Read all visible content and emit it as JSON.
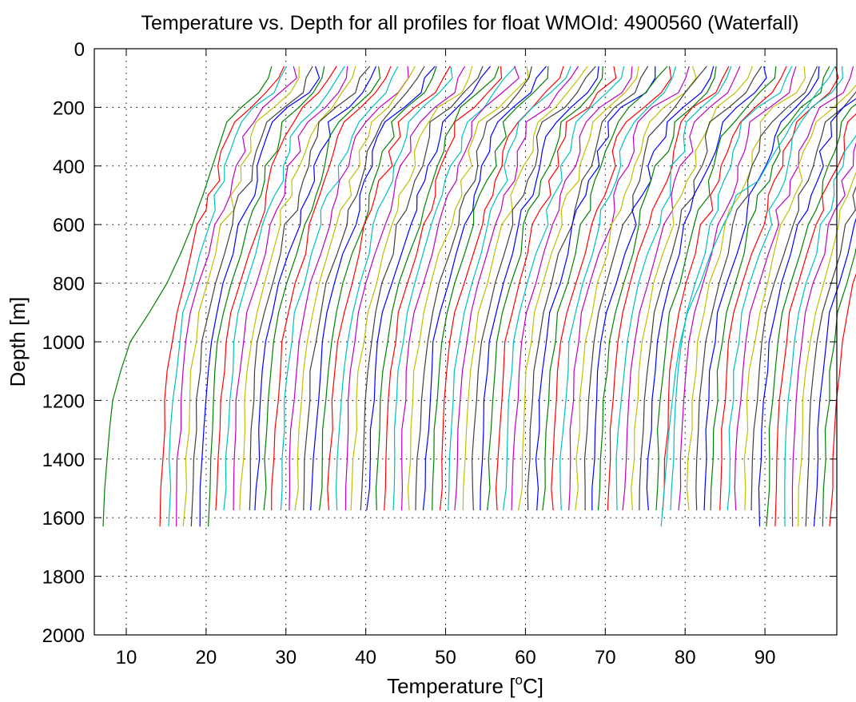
{
  "chart_data": {
    "type": "line",
    "title": "Temperature vs. Depth for all profiles for float WMOId: 4900560 (Waterfall)",
    "xlabel": "Temperature [",
    "xlabel_sup": "o",
    "xlabel_tail": "C]",
    "ylabel": "Depth [m]",
    "xlim": [
      6,
      99
    ],
    "ylim": [
      0,
      2000
    ],
    "y_reversed": true,
    "grid": true,
    "x_ticks": [
      10,
      20,
      30,
      40,
      50,
      60,
      70,
      80,
      90
    ],
    "y_ticks": [
      0,
      200,
      400,
      600,
      800,
      1000,
      1200,
      1400,
      1600,
      1800,
      2000
    ],
    "color_cycle": [
      "#008000",
      "#ff0000",
      "#00bfbf",
      "#bf00bf",
      "#bfbf00",
      "#404040",
      "#0000ff"
    ],
    "num_profiles": 87,
    "profile_offset_step_degC": 1.0,
    "profile_template": {
      "depth": [
        60,
        100,
        150,
        200,
        250,
        300,
        350,
        400,
        450,
        500,
        550,
        600,
        700,
        800,
        900,
        1000,
        1100,
        1200,
        1300,
        1400,
        1500,
        1575
      ],
      "temperature": [
        28.2,
        27.8,
        26.6,
        24.4,
        22.6,
        22.0,
        21.4,
        20.8,
        20.2,
        19.6,
        18.9,
        18.3,
        17.3,
        16.2,
        15.2,
        14.6,
        14.2,
        13.9,
        13.7,
        13.5,
        13.4,
        13.3
      ]
    },
    "first_profile_temperature": [
      28.2,
      27.8,
      26.6,
      24.4,
      22.6,
      22.0,
      21.4,
      20.8,
      20.2,
      19.6,
      18.9,
      18.3,
      16.8,
      15.1,
      12.9,
      10.5,
      9.3,
      8.3,
      7.9,
      7.6,
      7.3,
      7.1
    ],
    "first_profile_depth": [
      60,
      100,
      150,
      200,
      250,
      300,
      350,
      400,
      450,
      500,
      550,
      600,
      700,
      800,
      900,
      1000,
      1100,
      1200,
      1300,
      1400,
      1500,
      1630
    ],
    "last_profile_temperature": [
      98.8,
      98.0,
      96.5,
      95.2,
      93.5,
      92.5,
      91.3,
      90.2,
      89.2,
      86.4,
      85.8,
      84.8,
      83.2,
      81.9,
      80.3,
      79.4,
      78.8,
      78.4,
      78.0,
      77.7,
      77.4,
      77.0
    ],
    "last_profile_depth": [
      60,
      100,
      150,
      200,
      250,
      300,
      350,
      400,
      450,
      500,
      550,
      600,
      700,
      800,
      900,
      1000,
      1100,
      1200,
      1300,
      1400,
      1500,
      1630
    ]
  }
}
